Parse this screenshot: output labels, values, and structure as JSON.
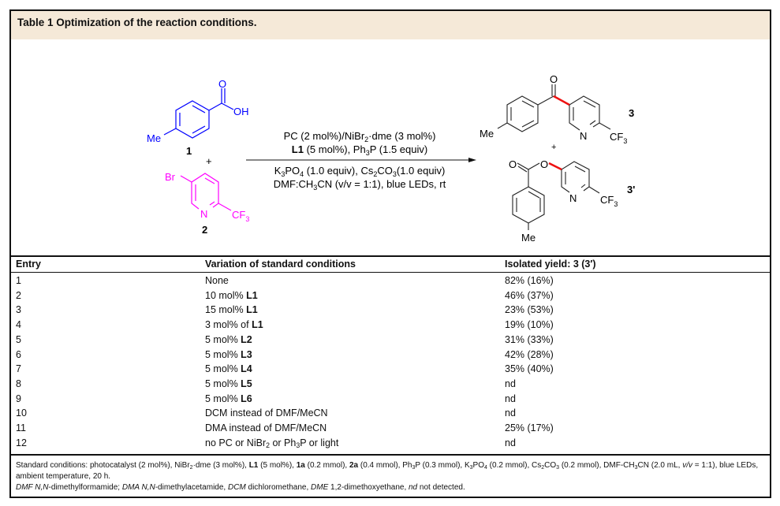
{
  "title": "Table 1 Optimization of the reaction conditions.",
  "scheme": {
    "reactant1": {
      "label": "1",
      "OH": "OH",
      "O": "O",
      "Me": "Me",
      "color": "#0000ff"
    },
    "plus1": "+",
    "reactant2": {
      "label": "2",
      "Br": "Br",
      "N": "N",
      "CF3": "CF",
      "CF3_sub": "3",
      "color": "#ff00ff"
    },
    "conditions_above": [
      [
        {
          "t": "PC (2 mol%)/NiBr"
        },
        {
          "t": "2",
          "sub": true
        },
        {
          "t": "·dme (3 mol%)"
        }
      ],
      [
        {
          "t": "L1",
          "b": true
        },
        {
          "t": " (5 mol%), Ph"
        },
        {
          "t": "3",
          "sub": true
        },
        {
          "t": "P (1.5 equiv)"
        }
      ]
    ],
    "conditions_below": [
      [
        {
          "t": "K"
        },
        {
          "t": "3",
          "sub": true
        },
        {
          "t": "PO"
        },
        {
          "t": "4",
          "sub": true
        },
        {
          "t": " (1.0 equiv), Cs"
        },
        {
          "t": "2",
          "sub": true
        },
        {
          "t": "CO"
        },
        {
          "t": "3",
          "sub": true
        },
        {
          "t": "(1.0 equiv)"
        }
      ],
      [
        {
          "t": "DMF:CH"
        },
        {
          "t": "3",
          "sub": true
        },
        {
          "t": "CN (v/v = 1:1), blue LEDs, rt"
        }
      ]
    ],
    "product3": {
      "label": "3",
      "O": "O",
      "Me": "Me",
      "N": "N",
      "CF3": "CF",
      "CF3_sub": "3"
    },
    "plus2": "+",
    "product3p": {
      "label": "3'",
      "O1": "O",
      "O2": "O",
      "Me": "Me",
      "N": "N",
      "CF3": "CF",
      "CF3_sub": "3"
    },
    "new_bond_color": "#ee1111"
  },
  "table": {
    "headers": [
      "Entry",
      "Variation of standard conditions",
      "Isolated yield: 3 (3′)"
    ],
    "rows": [
      {
        "entry": "1",
        "variation": [
          {
            "t": "None"
          }
        ],
        "yield": "82% (16%)"
      },
      {
        "entry": "2",
        "variation": [
          {
            "t": "10 mol% "
          },
          {
            "t": "L1",
            "b": true
          }
        ],
        "yield": "46% (37%)"
      },
      {
        "entry": "3",
        "variation": [
          {
            "t": "15 mol% "
          },
          {
            "t": "L1",
            "b": true
          }
        ],
        "yield": "23% (53%)"
      },
      {
        "entry": "4",
        "variation": [
          {
            "t": "3 mol% of "
          },
          {
            "t": "L1",
            "b": true
          }
        ],
        "yield": "19% (10%)"
      },
      {
        "entry": "5",
        "variation": [
          {
            "t": "5 mol% "
          },
          {
            "t": "L2",
            "b": true
          }
        ],
        "yield": "31% (33%)"
      },
      {
        "entry": "6",
        "variation": [
          {
            "t": "5 mol% "
          },
          {
            "t": "L3",
            "b": true
          }
        ],
        "yield": "42% (28%)"
      },
      {
        "entry": "7",
        "variation": [
          {
            "t": "5 mol% "
          },
          {
            "t": "L4",
            "b": true
          }
        ],
        "yield": "35% (40%)"
      },
      {
        "entry": "8",
        "variation": [
          {
            "t": "5 mol% "
          },
          {
            "t": "L5",
            "b": true
          }
        ],
        "yield": "nd"
      },
      {
        "entry": "9",
        "variation": [
          {
            "t": "5 mol% "
          },
          {
            "t": "L6",
            "b": true
          }
        ],
        "yield": "nd"
      },
      {
        "entry": "10",
        "variation": [
          {
            "t": "DCM instead of DMF/MeCN"
          }
        ],
        "yield": "nd"
      },
      {
        "entry": "11",
        "variation": [
          {
            "t": "DMA instead of DMF/MeCN"
          }
        ],
        "yield": "25% (17%)"
      },
      {
        "entry": "12",
        "variation": [
          {
            "t": "no PC or NiBr"
          },
          {
            "t": "2",
            "sub": true
          },
          {
            "t": " or Ph"
          },
          {
            "t": "3",
            "sub": true
          },
          {
            "t": "P or light"
          }
        ],
        "yield": "nd"
      }
    ]
  },
  "footnote": {
    "line1": [
      {
        "t": "Standard conditions: photocatalyst (2 mol%), NiBr"
      },
      {
        "t": "2",
        "sub": true
      },
      {
        "t": "·dme (3 mol%), "
      },
      {
        "t": "L1",
        "b": true
      },
      {
        "t": " (5 mol%), "
      },
      {
        "t": "1a",
        "b": true
      },
      {
        "t": " (0.2 mmol), "
      },
      {
        "t": "2a",
        "b": true
      },
      {
        "t": " (0.4 mmol), Ph"
      },
      {
        "t": "3",
        "sub": true
      },
      {
        "t": "P (0.3 mmol), K"
      },
      {
        "t": "3",
        "sub": true
      },
      {
        "t": "PO"
      },
      {
        "t": "4",
        "sub": true
      },
      {
        "t": " (0.2 mmol), Cs"
      },
      {
        "t": "2",
        "sub": true
      },
      {
        "t": "CO"
      },
      {
        "t": "3",
        "sub": true
      },
      {
        "t": " (0.2 mmol), DMF-CH"
      },
      {
        "t": "3",
        "sub": true
      },
      {
        "t": "CN (2.0 mL, "
      },
      {
        "t": "v/v",
        "i": true
      },
      {
        "t": " = 1:1), blue LEDs, ambient temperature, 20 h."
      }
    ],
    "line2": [
      {
        "t": "DMF N,N",
        "i": true
      },
      {
        "t": "-dimethylformamide; "
      },
      {
        "t": "DMA N,N",
        "i": true
      },
      {
        "t": "-dimethylacetamide, "
      },
      {
        "t": "DCM",
        "i": true
      },
      {
        "t": " dichloromethane, "
      },
      {
        "t": "DME",
        "i": true
      },
      {
        "t": " 1,2-dimethoxyethane, "
      },
      {
        "t": "nd",
        "i": true
      },
      {
        "t": " not detected."
      }
    ]
  }
}
